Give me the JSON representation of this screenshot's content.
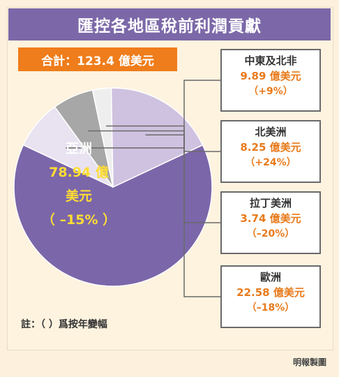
{
  "chart_data": {
    "type": "pie",
    "title": "匯控各地區稅前利潤貢獻",
    "total_label": "合計：123.4 億美元",
    "slices": [
      {
        "name": "亞洲",
        "value": 78.94,
        "value_label": "78.94 億美元",
        "change": "（–15%）",
        "color": "#7b66a9"
      },
      {
        "name": "中東及北非",
        "value": 9.89,
        "value_label": "9.89 億美元",
        "change": "（+9%）",
        "color": "#e8e2f1"
      },
      {
        "name": "北美洲",
        "value": 8.25,
        "value_label": "8.25 億美元",
        "change": "（+24%）",
        "color": "#a7a7a7"
      },
      {
        "name": "拉丁美洲",
        "value": 3.74,
        "value_label": "3.74 億美元",
        "change": "（–20%）",
        "color": "#eeeeee"
      },
      {
        "name": "歐洲",
        "value": 22.58,
        "value_label": "22.58 億美元",
        "change": "（–18%）",
        "color": "#cec2e0"
      }
    ],
    "asia_label": {
      "name": "亞洲",
      "value_line1": "78.94 億",
      "value_line2": "美元",
      "change": "（ –15% ）"
    },
    "note": "註：（ ）爲按年變幅",
    "credit": "明報製圖"
  }
}
